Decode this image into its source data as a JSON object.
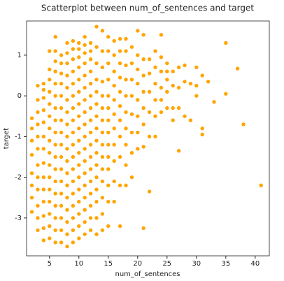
{
  "chart_data": {
    "type": "scatter",
    "title": "Scatterplot between num_of_sentences and target",
    "xlabel": "num_of_sentences",
    "ylabel": "target",
    "color": "#ffa500",
    "xlim": [
      1.1,
      42.4
    ],
    "ylim": [
      -3.93,
      1.84
    ],
    "xticks": [
      5,
      10,
      15,
      20,
      25,
      30,
      35,
      40
    ],
    "yticks": [
      -3,
      -2,
      -1,
      0,
      1
    ],
    "x": [
      2,
      2,
      2,
      2,
      2,
      2,
      2,
      2,
      3,
      3,
      3,
      3,
      3,
      3,
      3,
      3,
      3,
      3,
      3,
      3,
      4,
      4,
      4,
      4,
      4,
      4,
      4,
      4,
      4,
      4,
      4,
      4,
      4,
      4,
      5,
      5,
      5,
      5,
      5,
      5,
      5,
      5,
      5,
      5,
      5,
      5,
      5,
      5,
      5,
      5,
      6,
      6,
      6,
      6,
      6,
      6,
      6,
      6,
      6,
      6,
      6,
      6,
      6,
      6,
      6,
      6,
      6,
      6,
      7,
      7,
      7,
      7,
      7,
      7,
      7,
      7,
      7,
      7,
      7,
      7,
      7,
      7,
      7,
      7,
      7,
      8,
      8,
      8,
      8,
      8,
      8,
      8,
      8,
      8,
      8,
      8,
      8,
      8,
      8,
      8,
      8,
      8,
      8,
      9,
      9,
      9,
      9,
      9,
      9,
      9,
      9,
      9,
      9,
      9,
      9,
      9,
      9,
      9,
      9,
      9,
      9,
      10,
      10,
      10,
      10,
      10,
      10,
      10,
      10,
      10,
      10,
      10,
      10,
      10,
      10,
      10,
      10,
      10,
      10,
      11,
      11,
      11,
      11,
      11,
      11,
      11,
      11,
      11,
      11,
      11,
      11,
      11,
      11,
      11,
      11,
      11,
      11,
      12,
      12,
      12,
      12,
      12,
      12,
      12,
      12,
      12,
      12,
      12,
      12,
      12,
      12,
      12,
      12,
      12,
      13,
      13,
      13,
      13,
      13,
      13,
      13,
      13,
      13,
      13,
      13,
      13,
      13,
      13,
      13,
      13,
      14,
      14,
      14,
      14,
      14,
      14,
      14,
      14,
      14,
      14,
      14,
      14,
      14,
      14,
      14,
      15,
      15,
      15,
      15,
      15,
      15,
      15,
      15,
      15,
      15,
      15,
      15,
      15,
      15,
      16,
      16,
      16,
      16,
      16,
      16,
      16,
      16,
      16,
      16,
      16,
      17,
      17,
      17,
      17,
      17,
      17,
      17,
      17,
      17,
      17,
      17,
      18,
      18,
      18,
      18,
      18,
      18,
      18,
      18,
      18,
      18,
      19,
      19,
      19,
      19,
      19,
      19,
      19,
      19,
      20,
      20,
      20,
      20,
      20,
      20,
      20,
      20,
      21,
      21,
      21,
      21,
      21,
      21,
      21,
      21,
      22,
      22,
      22,
      22,
      22,
      22,
      23,
      23,
      23,
      23,
      23,
      23,
      24,
      24,
      24,
      24,
      24,
      24,
      25,
      25,
      25,
      25,
      25,
      26,
      26,
      26,
      26,
      27,
      27,
      27,
      27,
      28,
      28,
      28,
      29,
      29,
      30,
      30,
      30,
      31,
      31,
      31,
      32,
      33,
      35,
      35,
      37,
      38,
      41
    ],
    "y": [
      -2.85,
      -2.5,
      -2.2,
      -1.9,
      -1.45,
      -1.1,
      -0.8,
      -0.55,
      -3.3,
      -3.0,
      -2.7,
      -2.3,
      -2.0,
      -1.7,
      -1.3,
      -1.0,
      -0.7,
      -0.4,
      -0.1,
      0.25,
      -3.55,
      -3.25,
      -2.95,
      -2.6,
      -2.3,
      -2.0,
      -1.65,
      -1.3,
      -1.0,
      -0.65,
      -0.35,
      -0.05,
      0.15,
      0.3,
      -3.5,
      -3.2,
      -2.9,
      -2.6,
      -2.3,
      -2.0,
      -1.7,
      -1.4,
      -1.1,
      -0.8,
      -0.5,
      -0.2,
      0.1,
      0.4,
      0.65,
      1.1,
      -3.6,
      -3.3,
      -3.0,
      -2.7,
      -2.4,
      -2.1,
      -1.8,
      -1.5,
      -1.2,
      -0.9,
      -0.6,
      -0.3,
      0.0,
      0.3,
      0.6,
      0.85,
      1.1,
      1.45,
      -3.6,
      -3.3,
      -3.0,
      -2.7,
      -2.4,
      -2.1,
      -1.8,
      -1.5,
      -1.2,
      -0.9,
      -0.6,
      -0.3,
      0.0,
      0.3,
      0.55,
      0.8,
      1.0,
      -3.7,
      -3.4,
      -3.1,
      -2.8,
      -2.5,
      -2.2,
      -1.9,
      -1.6,
      -1.3,
      -1.0,
      -0.7,
      -0.4,
      -0.1,
      0.2,
      0.5,
      0.8,
      1.05,
      1.3,
      -3.6,
      -3.3,
      -3.0,
      -2.7,
      -2.4,
      -2.1,
      -1.8,
      -1.5,
      -1.2,
      -0.9,
      -0.6,
      -0.3,
      0.0,
      0.3,
      0.6,
      0.9,
      1.15,
      1.35,
      -3.5,
      -3.2,
      -2.9,
      -2.6,
      -2.3,
      -2.0,
      -1.7,
      -1.4,
      -1.1,
      -0.8,
      -0.5,
      -0.2,
      0.1,
      0.4,
      0.7,
      0.95,
      1.15,
      1.3,
      -3.4,
      -3.1,
      -2.8,
      -2.5,
      -2.2,
      -1.9,
      -1.6,
      -1.3,
      -1.0,
      -0.7,
      -0.4,
      -0.1,
      0.2,
      0.5,
      0.8,
      1.05,
      1.25,
      1.45,
      -3.3,
      -3.0,
      -2.7,
      -2.4,
      -2.1,
      -1.8,
      -1.5,
      -1.2,
      -0.9,
      -0.6,
      -0.3,
      0.0,
      0.3,
      0.6,
      0.9,
      1.1,
      1.3,
      -3.4,
      -3.0,
      -2.6,
      -2.3,
      -2.0,
      -1.7,
      -1.4,
      -1.1,
      -0.8,
      -0.5,
      -0.2,
      0.1,
      0.4,
      0.8,
      1.2,
      1.7,
      -3.3,
      -2.9,
      -2.5,
      -2.1,
      -1.8,
      -1.5,
      -1.2,
      -0.9,
      -0.6,
      -0.3,
      0.0,
      0.35,
      0.7,
      1.1,
      1.6,
      -3.2,
      -2.6,
      -2.2,
      -1.8,
      -1.5,
      -1.2,
      -0.9,
      -0.6,
      -0.3,
      0.0,
      0.4,
      0.8,
      1.1,
      1.45,
      -2.6,
      -2.1,
      -1.6,
      -1.2,
      -0.8,
      -0.45,
      -0.1,
      0.25,
      0.6,
      1.0,
      1.35,
      -3.2,
      -2.2,
      -1.5,
      -1.0,
      -0.6,
      -0.25,
      0.1,
      0.45,
      0.8,
      1.1,
      1.4,
      -2.2,
      -1.7,
      -1.2,
      -0.8,
      -0.4,
      0.0,
      0.4,
      0.75,
      1.1,
      1.4,
      -2.0,
      -1.4,
      -0.9,
      -0.45,
      0.0,
      0.4,
      0.8,
      1.2,
      -1.3,
      -0.9,
      -0.5,
      -0.1,
      0.3,
      0.65,
      1.0,
      1.6,
      -3.25,
      -1.25,
      -0.7,
      -0.3,
      0.1,
      0.5,
      0.9,
      1.5,
      -2.35,
      -1.0,
      -0.4,
      0.1,
      0.55,
      0.9,
      -1.0,
      -0.5,
      -0.1,
      0.3,
      0.7,
      1.1,
      -0.4,
      -0.1,
      0.2,
      0.6,
      0.95,
      1.5,
      -0.3,
      0.1,
      0.4,
      0.6,
      0.8,
      -0.6,
      -0.3,
      0.25,
      0.6,
      -1.35,
      -0.3,
      0.2,
      0.7,
      -0.5,
      0.35,
      0.75,
      -0.6,
      0.3,
      0.0,
      0.25,
      0.7,
      -0.95,
      -0.8,
      0.5,
      0.35,
      -0.15,
      1.3,
      0.05,
      0.67,
      -0.7,
      -2.2
    ]
  }
}
